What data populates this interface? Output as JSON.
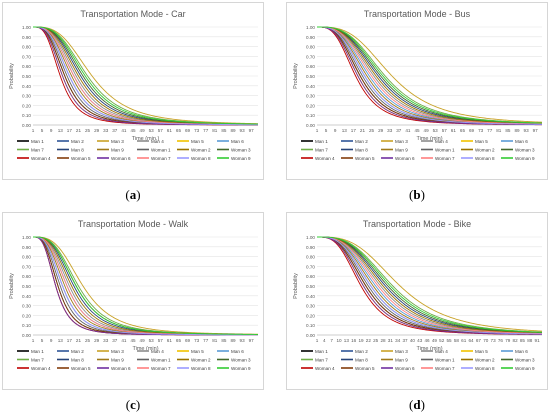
{
  "chart_data": [
    {
      "type": "line",
      "title": "Transportation Mode - Car",
      "xlabel": "Time (min.)",
      "ylabel": "Probability",
      "x_ticks": [
        "1",
        "5",
        "9",
        "13",
        "17",
        "21",
        "25",
        "29",
        "33",
        "37",
        "41",
        "45",
        "49",
        "53",
        "57",
        "61",
        "65",
        "69",
        "73",
        "77",
        "81",
        "85",
        "89",
        "93",
        "97"
      ],
      "y_ticks": [
        "0.00",
        "0.10",
        "0.20",
        "0.30",
        "0.40",
        "0.50",
        "0.60",
        "0.70",
        "0.80",
        "0.90",
        "1.00"
      ],
      "xlim": [
        1,
        100
      ],
      "ylim": [
        0,
        1
      ],
      "grid": true,
      "legend_position": "bottom",
      "legend": [
        "Man 1",
        "Man 2",
        "Man 3",
        "Man 4",
        "Man 5",
        "Man 6",
        "Man 7",
        "Man 8",
        "Man 9",
        "Woman 1",
        "Woman 2",
        "Woman 3",
        "Woman 4",
        "Woman 5",
        "Woman 6",
        "Woman 7",
        "Woman 8",
        "Woman 9"
      ],
      "series_half_time": [
        14,
        16,
        26,
        19,
        13,
        18,
        24,
        21,
        17,
        15,
        20,
        22,
        12,
        14,
        13,
        18,
        16,
        23
      ],
      "sub_label": "a"
    },
    {
      "type": "line",
      "title": "Transportation Mode - Bus",
      "xlabel": "Time (min)",
      "ylabel": "Probability",
      "x_ticks": [
        "1",
        "5",
        "9",
        "13",
        "17",
        "21",
        "25",
        "29",
        "33",
        "37",
        "41",
        "45",
        "49",
        "53",
        "57",
        "61",
        "65",
        "69",
        "73",
        "77",
        "81",
        "85",
        "89",
        "93",
        "97"
      ],
      "y_ticks": [
        "0.00",
        "0.10",
        "0.20",
        "0.30",
        "0.40",
        "0.50",
        "0.60",
        "0.70",
        "0.80",
        "0.90",
        "1.00"
      ],
      "xlim": [
        1,
        100
      ],
      "ylim": [
        0,
        1
      ],
      "grid": true,
      "legend_position": "bottom",
      "legend": [
        "Man 1",
        "Man 2",
        "Man 3",
        "Man 4",
        "Man 5",
        "Man 6",
        "Man 7",
        "Man 8",
        "Man 9",
        "Woman 1",
        "Woman 2",
        "Woman 3",
        "Woman 4",
        "Woman 5",
        "Woman 6",
        "Woman 7",
        "Woman 8",
        "Woman 9"
      ],
      "series_half_time": [
        19,
        21,
        33,
        25,
        18,
        23,
        30,
        27,
        22,
        20,
        26,
        28,
        17,
        19,
        18,
        24,
        21,
        29
      ],
      "sub_label": "b"
    },
    {
      "type": "line",
      "title": "Transportation Mode - Walk",
      "xlabel": "Time (min)",
      "ylabel": "Probability",
      "x_ticks": [
        "1",
        "5",
        "9",
        "13",
        "17",
        "21",
        "25",
        "29",
        "33",
        "37",
        "41",
        "45",
        "49",
        "53",
        "57",
        "61",
        "65",
        "69",
        "73",
        "77",
        "81",
        "85",
        "89",
        "93",
        "97"
      ],
      "y_ticks": [
        "0.00",
        "0.10",
        "0.20",
        "0.30",
        "0.40",
        "0.50",
        "0.60",
        "0.70",
        "0.80",
        "0.90",
        "1.00"
      ],
      "xlim": [
        1,
        100
      ],
      "ylim": [
        0,
        1
      ],
      "grid": true,
      "legend_position": "bottom",
      "legend": [
        "Man 1",
        "Man 2",
        "Man 3",
        "Man 4",
        "Man 5",
        "Man 6",
        "Man 7",
        "Man 8",
        "Man 9",
        "Woman 1",
        "Woman 2",
        "Woman 3",
        "Woman 4",
        "Woman 5",
        "Woman 6",
        "Woman 7",
        "Woman 8",
        "Woman 9"
      ],
      "series_half_time": [
        11,
        13,
        22,
        16,
        10,
        15,
        20,
        18,
        14,
        12,
        17,
        19,
        10,
        11,
        10,
        15,
        13,
        19
      ],
      "sub_label": "c"
    },
    {
      "type": "line",
      "title": "Transportation Mode - Bike",
      "xlabel": "Time (min)",
      "ylabel": "Probability",
      "x_ticks": [
        "1",
        "4",
        "7",
        "10",
        "13",
        "16",
        "19",
        "22",
        "25",
        "28",
        "31",
        "34",
        "37",
        "40",
        "43",
        "46",
        "49",
        "52",
        "55",
        "58",
        "61",
        "64",
        "67",
        "70",
        "73",
        "76",
        "79",
        "82",
        "85",
        "88",
        "91"
      ],
      "y_ticks": [
        "0.00",
        "0.10",
        "0.20",
        "0.30",
        "0.40",
        "0.50",
        "0.60",
        "0.70",
        "0.80",
        "0.90",
        "1.00"
      ],
      "xlim": [
        1,
        93
      ],
      "ylim": [
        0,
        1
      ],
      "grid": true,
      "legend_position": "bottom",
      "legend": [
        "Man 1",
        "Man 2",
        "Man 3",
        "Man 4",
        "Man 5",
        "Man 6",
        "Man 7",
        "Man 8",
        "Man 9",
        "Woman 1",
        "Woman 2",
        "Woman 3",
        "Woman 4",
        "Woman 5",
        "Woman 6",
        "Woman 7",
        "Woman 8",
        "Woman 9"
      ],
      "series_half_time": [
        20,
        22,
        34,
        26,
        19,
        24,
        31,
        28,
        23,
        21,
        27,
        29,
        18,
        20,
        19,
        25,
        22,
        30
      ],
      "sub_label": "d"
    }
  ],
  "series_colors": [
    "#000000",
    "#2f5597",
    "#c9a227",
    "#8c8c8c",
    "#f2c200",
    "#5b9bd5",
    "#70ad47",
    "#264478",
    "#9e7a1b",
    "#636363",
    "#997300",
    "#43682b",
    "#c00000",
    "#843c0c",
    "#7030a0",
    "#ff7f7f",
    "#9999ff",
    "#33cc33"
  ]
}
